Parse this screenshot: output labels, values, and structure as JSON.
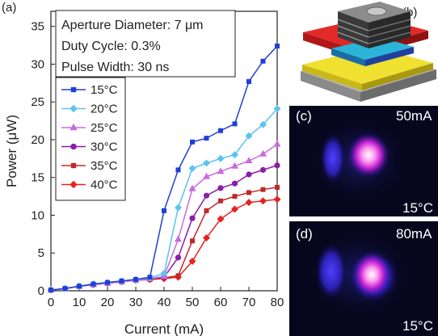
{
  "panel_labels": {
    "a": "(a)",
    "b": "(b)",
    "c": "(c)",
    "d": "(d)"
  },
  "info_box": {
    "line1": "Aperture Diameter: 7 μm",
    "line2": "Duty Cycle: 0.3%",
    "line3": "Pulse Width: 30 ns"
  },
  "image_c": {
    "current": "50mA",
    "temp": "15°C"
  },
  "image_d": {
    "current": "80mA",
    "temp": "15°C"
  },
  "chart_data": {
    "type": "line",
    "xlabel": "Current (mA)",
    "ylabel": "Power (μW)",
    "xlim": [
      0,
      80
    ],
    "ylim": [
      0,
      37
    ],
    "xticks": [
      0,
      10,
      20,
      30,
      40,
      50,
      60,
      70,
      80
    ],
    "yticks": [
      0,
      5,
      10,
      15,
      20,
      25,
      30,
      35
    ],
    "grid": false,
    "legend_position": "middle-left",
    "x": [
      0,
      5,
      10,
      15,
      20,
      25,
      30,
      35,
      40,
      45,
      50,
      55,
      60,
      65,
      70,
      75,
      80
    ],
    "series": [
      {
        "name": "15°C",
        "color": "#1f3fd6",
        "marker": "square",
        "values": [
          0.1,
          0.3,
          0.6,
          0.9,
          1.1,
          1.3,
          1.5,
          1.8,
          10.6,
          16.0,
          19.7,
          20.2,
          21.2,
          22.1,
          27.7,
          30.4,
          32.4
        ]
      },
      {
        "name": "20°C",
        "color": "#5bc4ee",
        "marker": "diamond",
        "values": [
          0.1,
          0.3,
          0.6,
          0.9,
          1.1,
          1.3,
          1.5,
          1.7,
          2.3,
          11.0,
          16.2,
          16.9,
          17.5,
          18.0,
          20.5,
          22.0,
          24.1
        ]
      },
      {
        "name": "25°C",
        "color": "#c86be0",
        "marker": "triangle",
        "values": [
          0.1,
          0.3,
          0.6,
          0.8,
          1.0,
          1.2,
          1.4,
          1.6,
          1.9,
          6.8,
          13.5,
          15.1,
          15.8,
          16.5,
          17.2,
          18.1,
          19.4
        ]
      },
      {
        "name": "30°C",
        "color": "#8a1fa8",
        "marker": "circle",
        "values": [
          0.1,
          0.3,
          0.6,
          0.8,
          1.0,
          1.2,
          1.4,
          1.6,
          1.8,
          4.4,
          9.6,
          12.6,
          13.6,
          14.2,
          15.4,
          16.0,
          16.6
        ]
      },
      {
        "name": "35°C",
        "color": "#c0282b",
        "marker": "square",
        "values": [
          0.1,
          0.3,
          0.6,
          0.8,
          1.0,
          1.2,
          1.4,
          1.5,
          1.7,
          2.0,
          6.6,
          10.6,
          11.9,
          12.5,
          13.0,
          13.4,
          13.7
        ]
      },
      {
        "name": "40°C",
        "color": "#e8221f",
        "marker": "diamond",
        "values": [
          0.1,
          0.3,
          0.6,
          0.8,
          1.0,
          1.2,
          1.4,
          1.5,
          1.6,
          1.8,
          3.9,
          7.0,
          9.5,
          10.8,
          11.7,
          11.9,
          12.1
        ]
      }
    ]
  }
}
